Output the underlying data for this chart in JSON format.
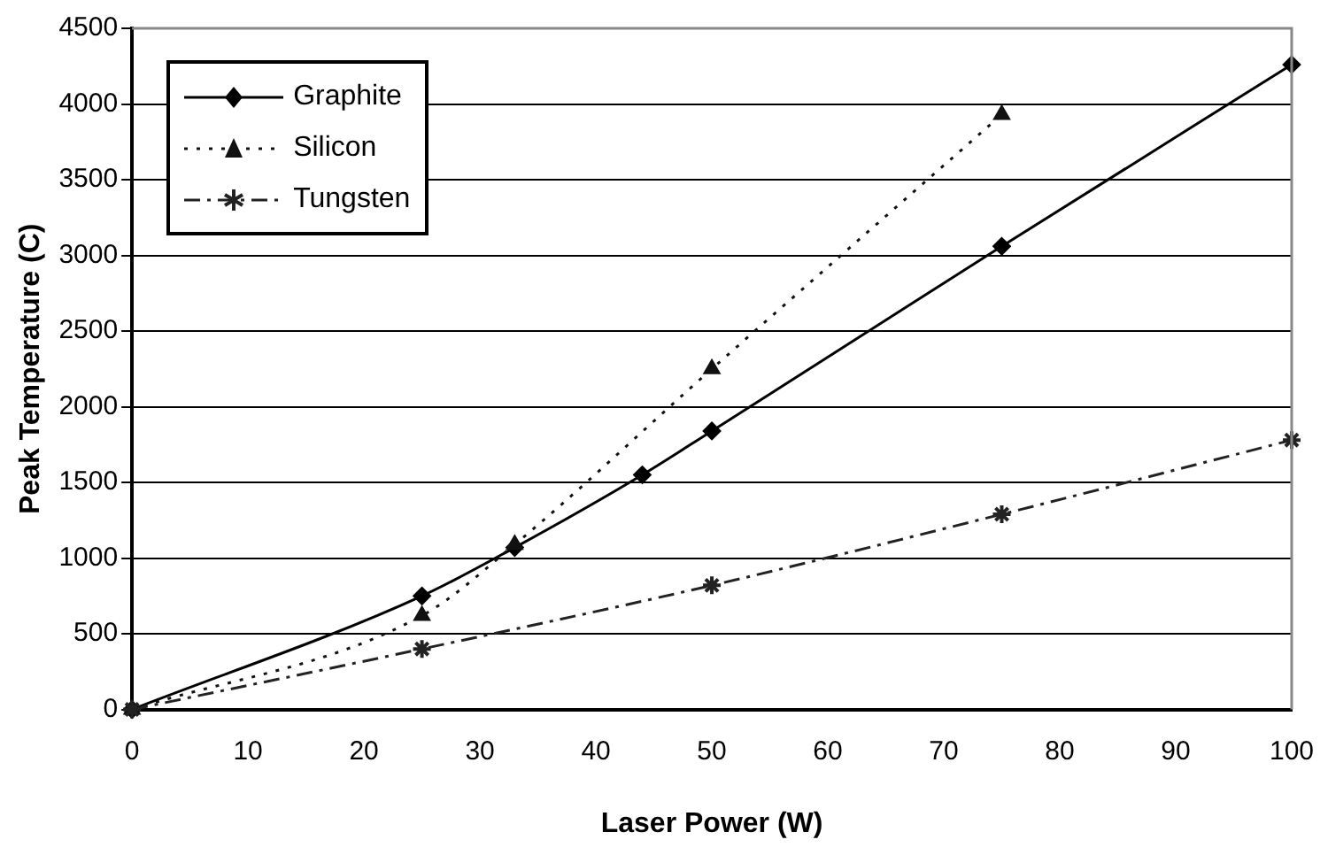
{
  "chart_data": {
    "type": "line",
    "xlabel": "Laser Power (W)",
    "ylabel": "Peak Temperature (C)",
    "xlim": [
      0,
      100
    ],
    "xticks": [
      0,
      10,
      20,
      30,
      40,
      50,
      60,
      70,
      80,
      90,
      100
    ],
    "ylim": [
      0,
      4500
    ],
    "yticks": [
      0,
      500,
      1000,
      1500,
      2000,
      2500,
      3000,
      3500,
      4000,
      4500
    ],
    "grid": "y",
    "legend": "top left",
    "series": [
      {
        "name": "Graphite",
        "color": "#000000",
        "marker": "diamond",
        "line_style": "solid",
        "x": [
          0,
          25,
          33,
          44,
          50,
          75,
          100
        ],
        "values": [
          0,
          750,
          1070,
          1550,
          1840,
          3060,
          4260
        ]
      },
      {
        "name": "Silicon",
        "color": "#111111",
        "marker": "triangle",
        "line_style": "dotted",
        "x": [
          0,
          25,
          33,
          50,
          75
        ],
        "values": [
          0,
          620,
          1090,
          2250,
          3930
        ]
      },
      {
        "name": "Tungsten",
        "color": "#222222",
        "marker": "cross",
        "line_style": "dashed",
        "x": [
          0,
          25,
          50,
          75,
          100
        ],
        "values": [
          0,
          400,
          820,
          1290,
          1780
        ]
      }
    ]
  }
}
